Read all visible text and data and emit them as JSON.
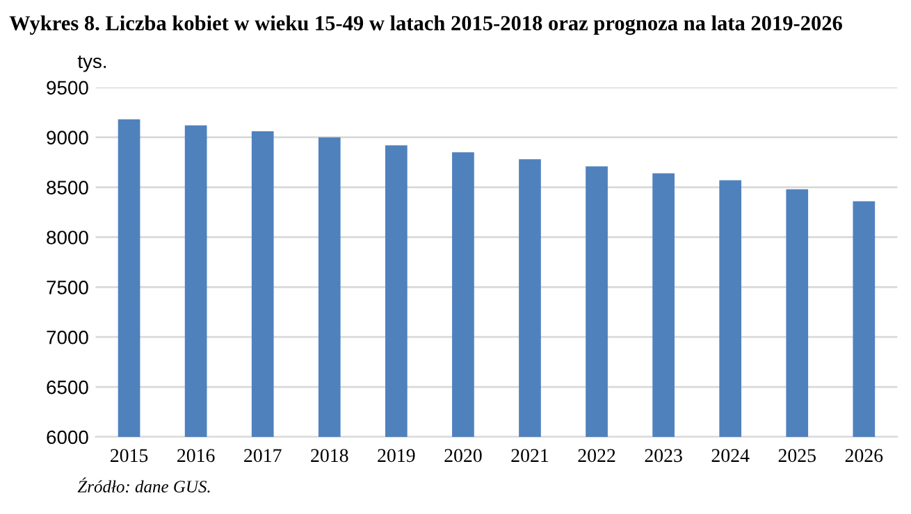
{
  "chart_data": {
    "type": "bar",
    "title": "Wykres 8. Liczba kobiet w wieku 15-49 w latach 2015-2018 oraz prognoza na lata 2019-2026",
    "ylabel": "tys.",
    "categories": [
      "2015",
      "2016",
      "2017",
      "2018",
      "2019",
      "2020",
      "2021",
      "2022",
      "2023",
      "2024",
      "2025",
      "2026"
    ],
    "values": [
      9180,
      9120,
      9060,
      9000,
      8920,
      8850,
      8780,
      8710,
      8640,
      8570,
      8480,
      8360
    ],
    "color": "#4f81bd",
    "ylim": [
      6000,
      9500
    ],
    "yticks": [
      6000,
      6500,
      7000,
      7500,
      8000,
      8500,
      9000,
      9500
    ],
    "grid": "y",
    "annotations": [
      "Źródło: dane GUS."
    ]
  }
}
